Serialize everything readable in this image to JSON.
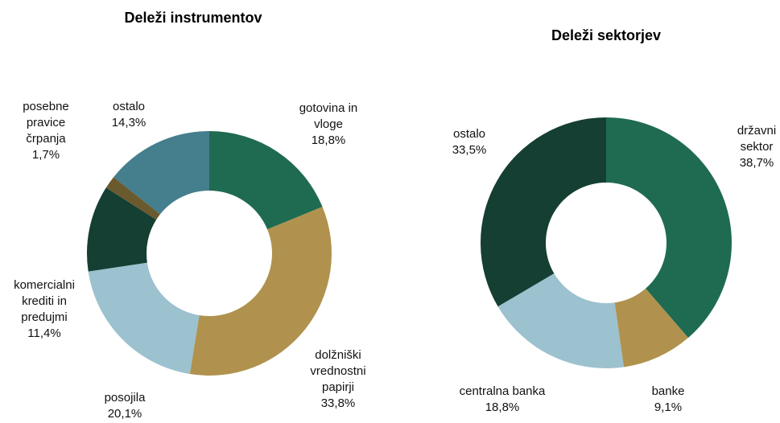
{
  "chart_data": [
    {
      "type": "donut",
      "title": "Deleži instrumentov",
      "categories": [
        "gotovina in vloge",
        "dolžniški vrednostni papirji",
        "posojila",
        "komercialni krediti in predujmi",
        "posebne pravice črpanja",
        "ostalo"
      ],
      "values": [
        18.8,
        33.8,
        20.1,
        11.4,
        1.7,
        14.3
      ],
      "value_labels": [
        "18,8%",
        "33,8%",
        "20,1%",
        "11,4%",
        "1,7%",
        "14,3%"
      ],
      "colors": [
        "#1f6b51",
        "#b0924e",
        "#9cc1cf",
        "#143f32",
        "#6b5a2e",
        "#457e8d"
      ]
    },
    {
      "type": "donut",
      "title": "Deleži sektorjev",
      "categories": [
        "državni sektor",
        "banke",
        "centralna banka",
        "ostalo"
      ],
      "values": [
        38.7,
        9.1,
        18.8,
        33.5
      ],
      "value_labels": [
        "38,7%",
        "9,1%",
        "18,8%",
        "33,5%"
      ],
      "colors": [
        "#1f6b51",
        "#b0924e",
        "#9cc1cf",
        "#143f32"
      ]
    }
  ]
}
